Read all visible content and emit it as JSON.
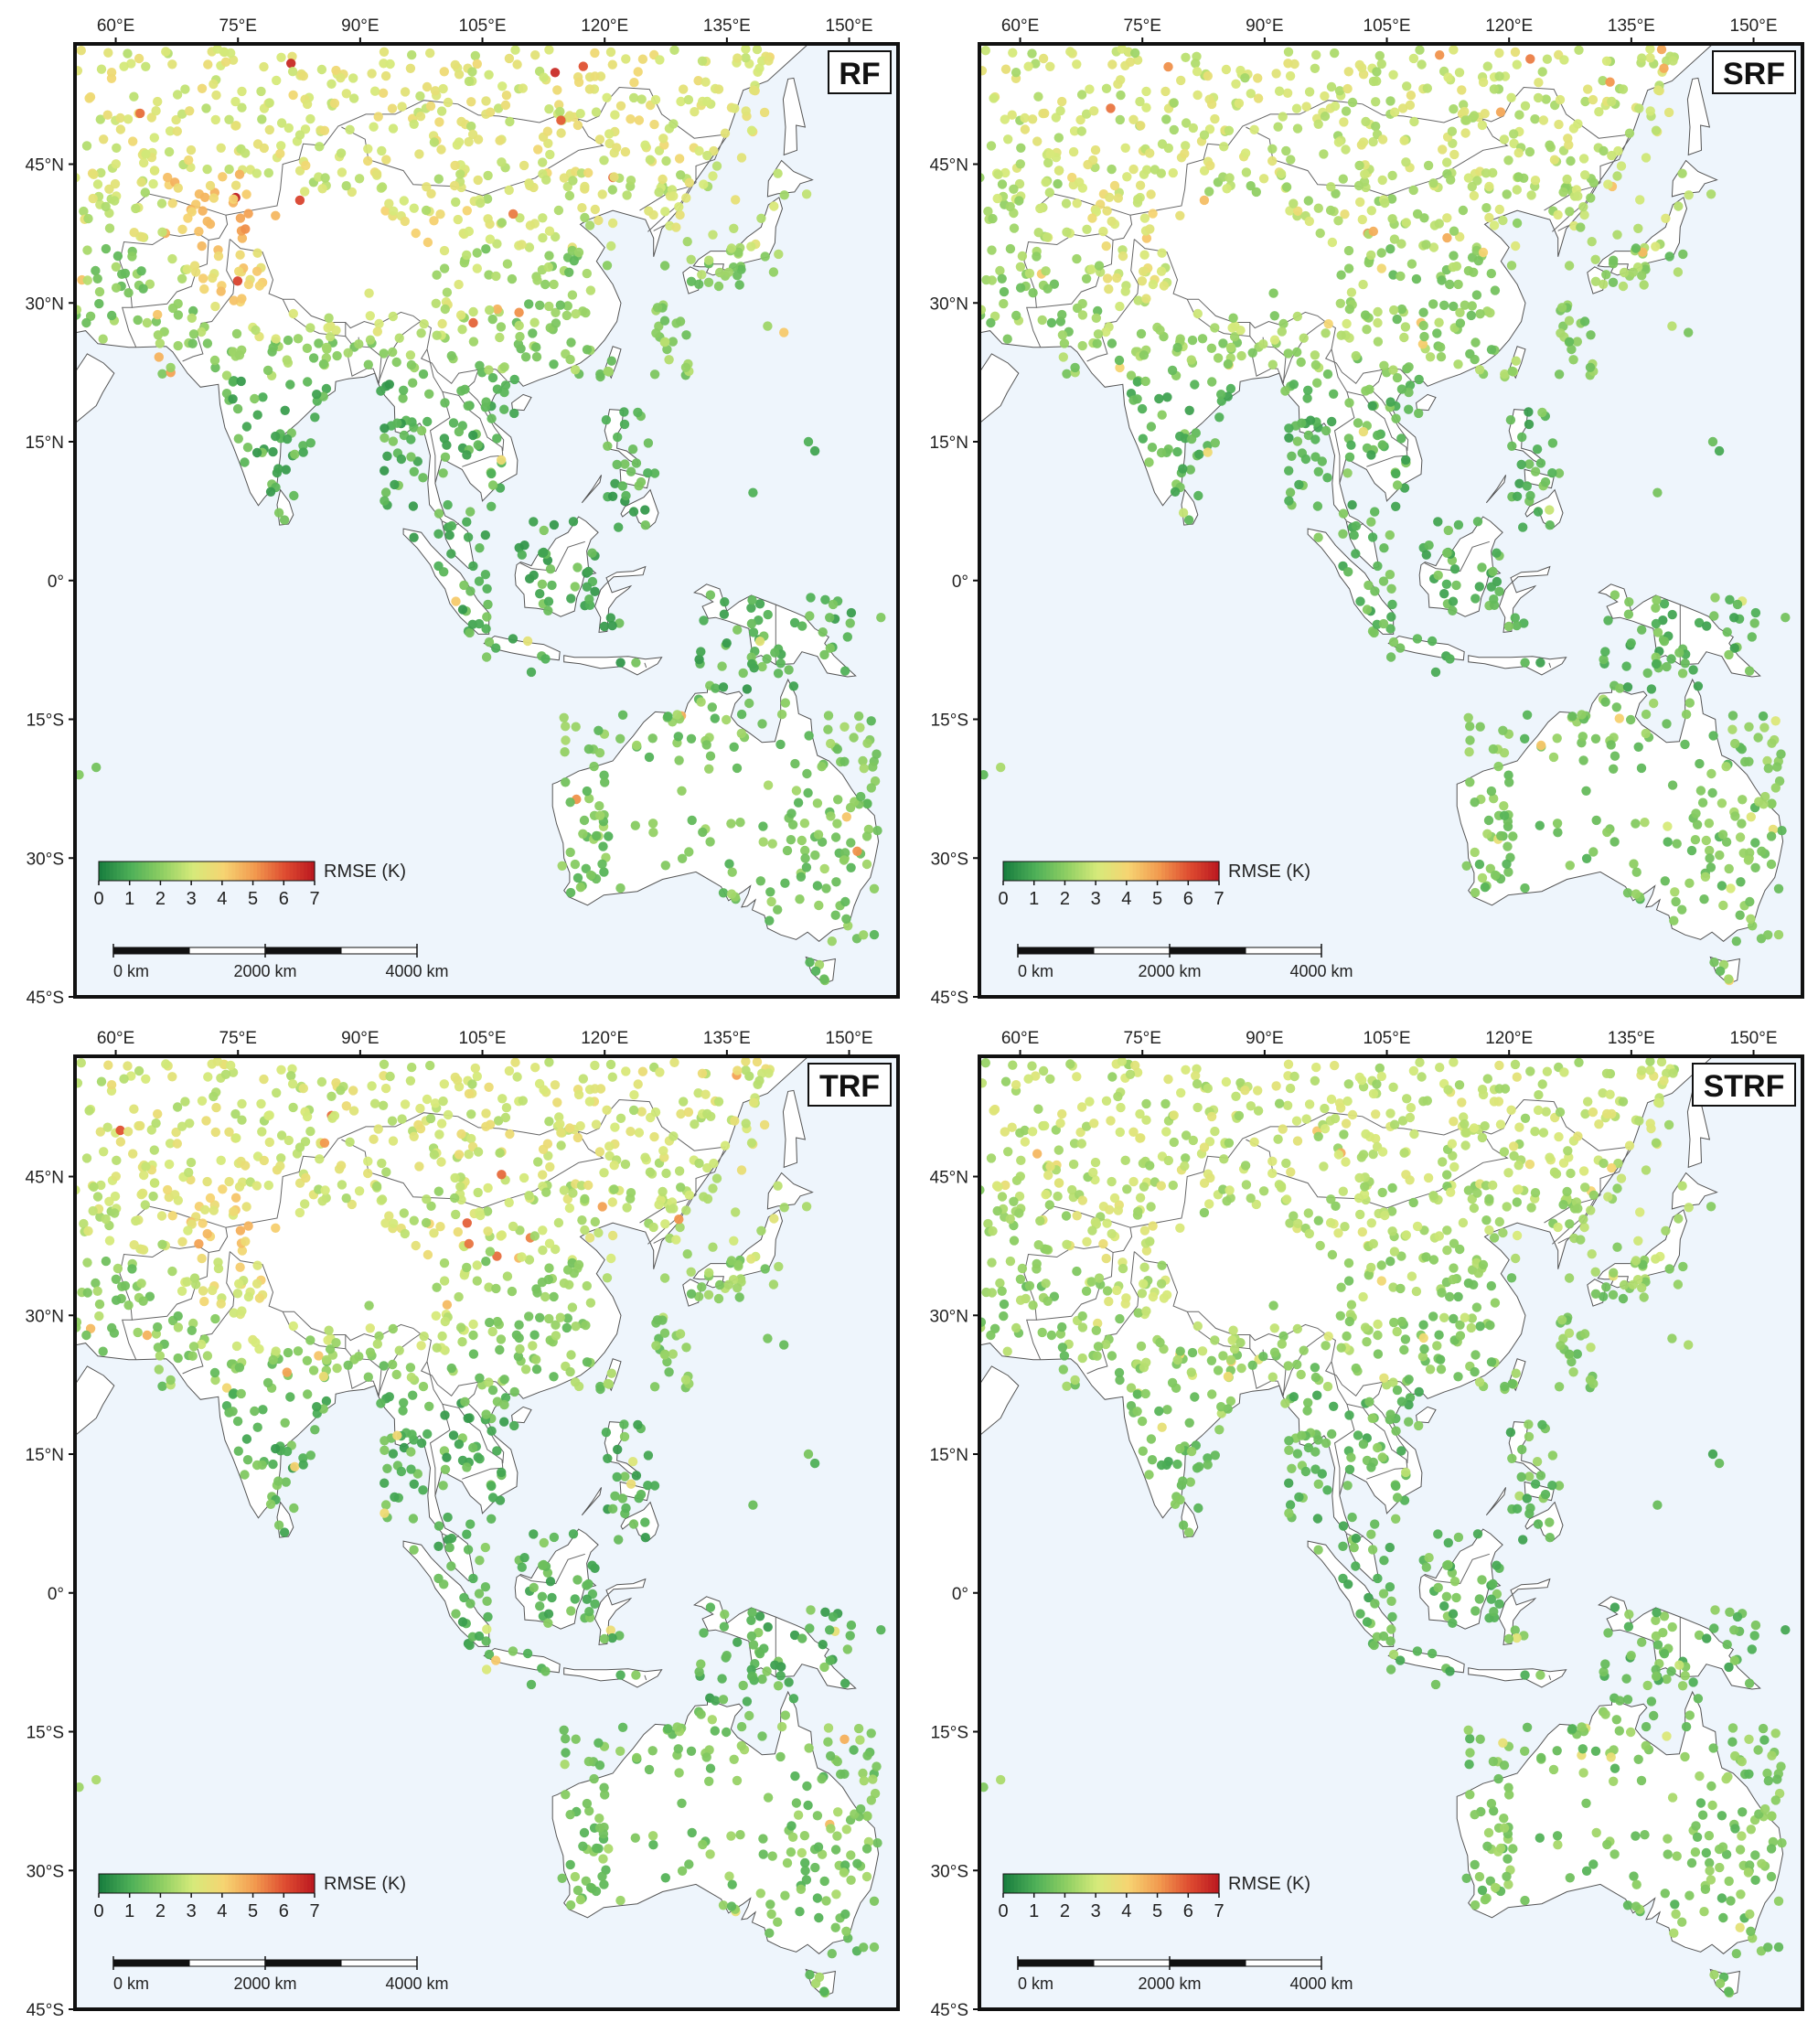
{
  "map": {
    "extent": {
      "lon_min": 55,
      "lon_max": 156,
      "lat_min": -45,
      "lat_max": 58
    },
    "lon_ticks": [
      "60°E",
      "75°E",
      "90°E",
      "105°E",
      "120°E",
      "135°E",
      "150°E"
    ],
    "lat_ticks": [
      "45°N",
      "30°N",
      "15°N",
      "0°",
      "15°S",
      "30°S",
      "45°S"
    ],
    "ocean_color": "#eef5fc",
    "land_color": "#ffffff",
    "border_color": "#555555"
  },
  "panels": [
    {
      "label": "RF",
      "seed": 11,
      "bias": 0.45
    },
    {
      "label": "SRF",
      "seed": 23,
      "bias": 0.15
    },
    {
      "label": "TRF",
      "seed": 37,
      "bias": 0.3
    },
    {
      "label": "STRF",
      "seed": 51,
      "bias": 0.0
    }
  ],
  "legend": {
    "title": "RMSE (K)",
    "ticks": [
      "0",
      "1",
      "2",
      "3",
      "4",
      "5",
      "6",
      "7"
    ],
    "colors": [
      "#1a7f3f",
      "#4fb058",
      "#8fcf63",
      "#d6ea7a",
      "#f6d472",
      "#f29a4f",
      "#de4b30",
      "#b8141f"
    ]
  },
  "scalebar": {
    "labels": [
      "0 km",
      "2000 km",
      "4000 km"
    ]
  }
}
